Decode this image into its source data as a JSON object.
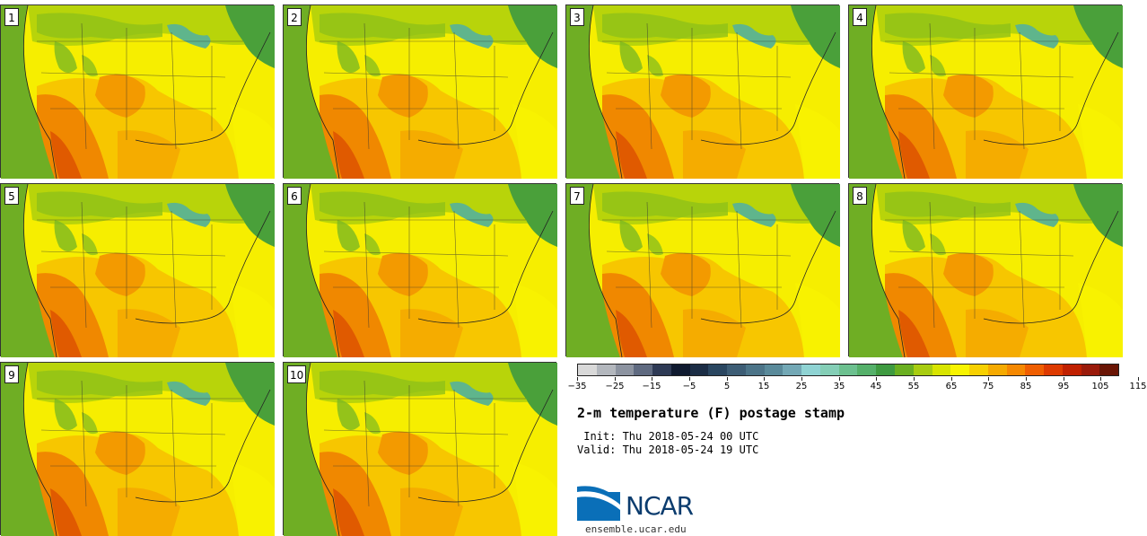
{
  "panels": [
    {
      "label": "1"
    },
    {
      "label": "2"
    },
    {
      "label": "3"
    },
    {
      "label": "4"
    },
    {
      "label": "5"
    },
    {
      "label": "6"
    },
    {
      "label": "7"
    },
    {
      "label": "8"
    },
    {
      "label": "9"
    },
    {
      "label": "10"
    }
  ],
  "colorbar": {
    "colors": [
      "#d9d9d9",
      "#b3b7bd",
      "#8c93a0",
      "#5f6a80",
      "#2e3a55",
      "#0f1a30",
      "#1b2d45",
      "#2a4660",
      "#3d5d75",
      "#4c7488",
      "#5a8a9a",
      "#73a8b5",
      "#8fd3d3",
      "#84ceb6",
      "#6cc08f",
      "#55b06a",
      "#3e9a40",
      "#6aaf20",
      "#a8cc10",
      "#d8e400",
      "#f8f400",
      "#f7d000",
      "#f5aa00",
      "#f58800",
      "#ef5e00",
      "#dd3a00",
      "#c02000",
      "#9a1a0a",
      "#6a1505"
    ],
    "ticks": [
      "−35",
      "−25",
      "−15",
      "−5",
      "5",
      "15",
      "25",
      "35",
      "45",
      "55",
      "65",
      "75",
      "85",
      "95",
      "105",
      "115"
    ]
  },
  "title": "2-m temperature (F) postage stamp",
  "init": " Init: Thu 2018-05-24 00 UTC",
  "valid": "Valid: Thu 2018-05-24 19 UTC",
  "logo_text": "NCAR",
  "site": "ensemble.ucar.edu"
}
